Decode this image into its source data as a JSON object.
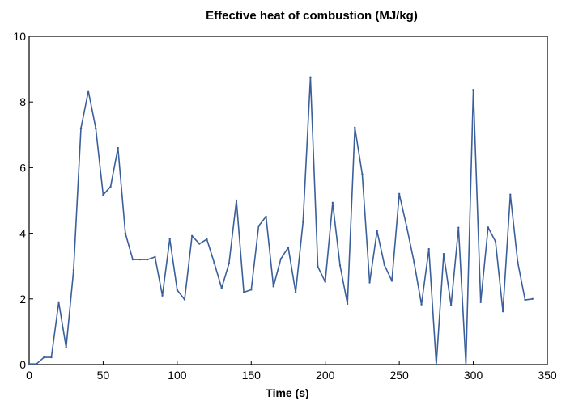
{
  "chart_data": {
    "type": "line",
    "title": "Effective heat of combustion (MJ/kg)",
    "xlabel": "Time (s)",
    "ylabel": "",
    "xlim": [
      0,
      350
    ],
    "ylim": [
      0,
      10
    ],
    "xticks": [
      0,
      50,
      100,
      150,
      200,
      250,
      300,
      350
    ],
    "yticks": [
      0,
      2,
      4,
      6,
      8,
      10
    ],
    "grid": false,
    "line_color": "#3a5f9a",
    "series": [
      {
        "x": [
          0,
          5,
          10,
          15,
          20,
          25,
          30,
          35,
          40,
          45,
          50,
          55,
          60,
          65,
          70,
          75,
          80,
          85,
          90,
          95,
          100,
          105,
          110,
          115,
          120,
          125,
          130,
          135,
          140,
          145,
          150,
          155,
          160,
          165,
          170,
          175,
          180,
          185,
          190,
          195,
          200,
          205,
          210,
          215,
          220,
          225,
          230,
          235,
          240,
          245,
          250,
          255,
          260,
          265,
          270,
          275,
          280,
          285,
          290,
          295,
          300,
          305,
          310,
          315,
          320,
          325,
          330,
          335,
          340
        ],
        "values": [
          0.02,
          0.02,
          0.22,
          0.22,
          1.9,
          0.52,
          2.87,
          7.2,
          8.33,
          7.2,
          5.17,
          5.42,
          6.6,
          4.0,
          3.2,
          3.2,
          3.2,
          3.28,
          2.1,
          3.83,
          2.27,
          1.98,
          3.92,
          3.68,
          3.82,
          3.1,
          2.33,
          3.08,
          5.0,
          2.2,
          2.28,
          4.22,
          4.51,
          2.38,
          3.22,
          3.57,
          2.2,
          4.35,
          8.75,
          2.98,
          2.52,
          4.93,
          3.02,
          1.85,
          7.22,
          5.8,
          2.5,
          4.07,
          3.03,
          2.55,
          5.2,
          4.2,
          3.12,
          1.83,
          3.52,
          0.0,
          3.37,
          1.8,
          4.17,
          0.0,
          8.37,
          1.9,
          4.18,
          3.75,
          1.62,
          5.18,
          3.12,
          1.97,
          2.0
        ]
      }
    ]
  }
}
